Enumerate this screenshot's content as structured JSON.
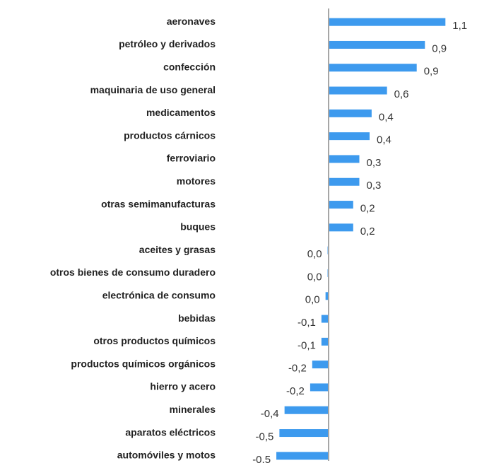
{
  "chart_data": {
    "type": "barh",
    "categories": [
      "aeronaves",
      "petróleo y derivados",
      "confección",
      "maquinaria de uso general",
      "medicamentos",
      "productos cárnicos",
      "ferroviario",
      "motores",
      "otras semimanufacturas",
      "buques",
      "aceites y grasas",
      "otros bienes de consumo duradero",
      "electrónica de consumo",
      "bebidas",
      "otros productos químicos",
      "productos químicos orgánicos",
      "hierro y acero",
      "minerales",
      "aparatos eléctricos",
      "automóviles y motos"
    ],
    "values": [
      1.14,
      0.94,
      0.86,
      0.57,
      0.42,
      0.4,
      0.3,
      0.3,
      0.24,
      0.24,
      -0.01,
      -0.01,
      -0.03,
      -0.07,
      -0.07,
      -0.16,
      -0.18,
      -0.43,
      -0.48,
      -0.51
    ],
    "value_labels": [
      "1,1",
      "0,9",
      "0,9",
      "0,6",
      "0,4",
      "0,4",
      "0,3",
      "0,3",
      "0,2",
      "0,2",
      "0,0",
      "0,0",
      "0,0",
      "-0,1",
      "-0,1",
      "-0,2",
      "-0,2",
      "-0,4",
      "-0,5",
      "-0,5"
    ],
    "color": "#3d9aee",
    "xlim": [
      -0.6,
      1.2
    ]
  }
}
